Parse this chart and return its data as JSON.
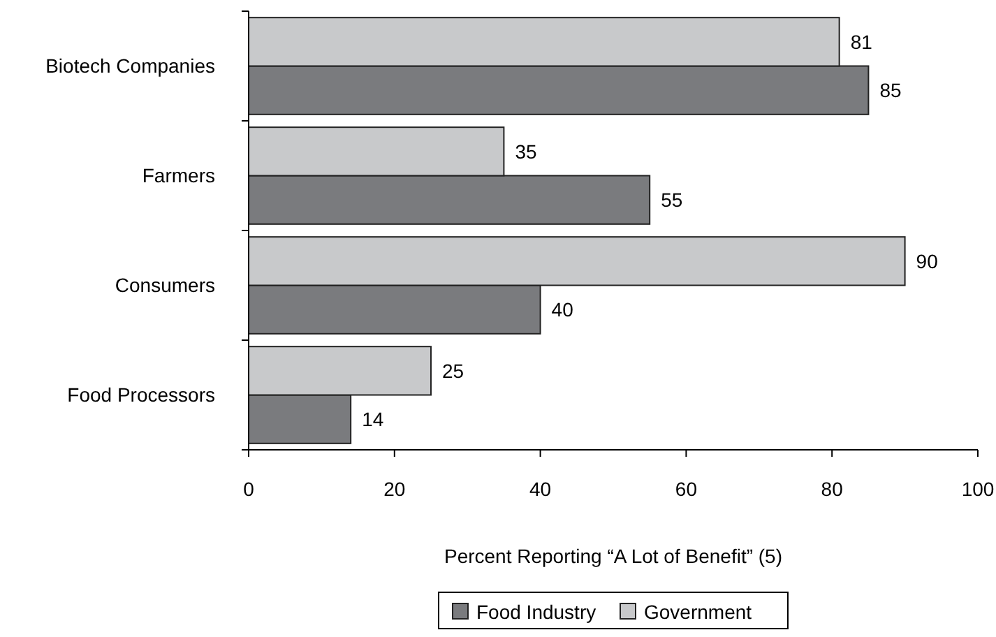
{
  "chart_data": {
    "type": "bar",
    "orientation": "horizontal",
    "xlabel": "Percent Reporting “A Lot of Benefit” (5)",
    "categories": [
      "Biotech Companies",
      "Farmers",
      "Consumers",
      "Food Processors"
    ],
    "series": [
      {
        "name": "Food Industry",
        "color": "#7a7b7e",
        "values": [
          85,
          55,
          40,
          14
        ]
      },
      {
        "name": "Government",
        "color": "#c8c9cb",
        "values": [
          81,
          35,
          90,
          25
        ]
      }
    ],
    "xlim": [
      0,
      100
    ],
    "xticks": [
      0,
      20,
      40,
      60,
      80,
      100
    ],
    "data_labels": true,
    "legend": "bottom",
    "grid": false
  }
}
